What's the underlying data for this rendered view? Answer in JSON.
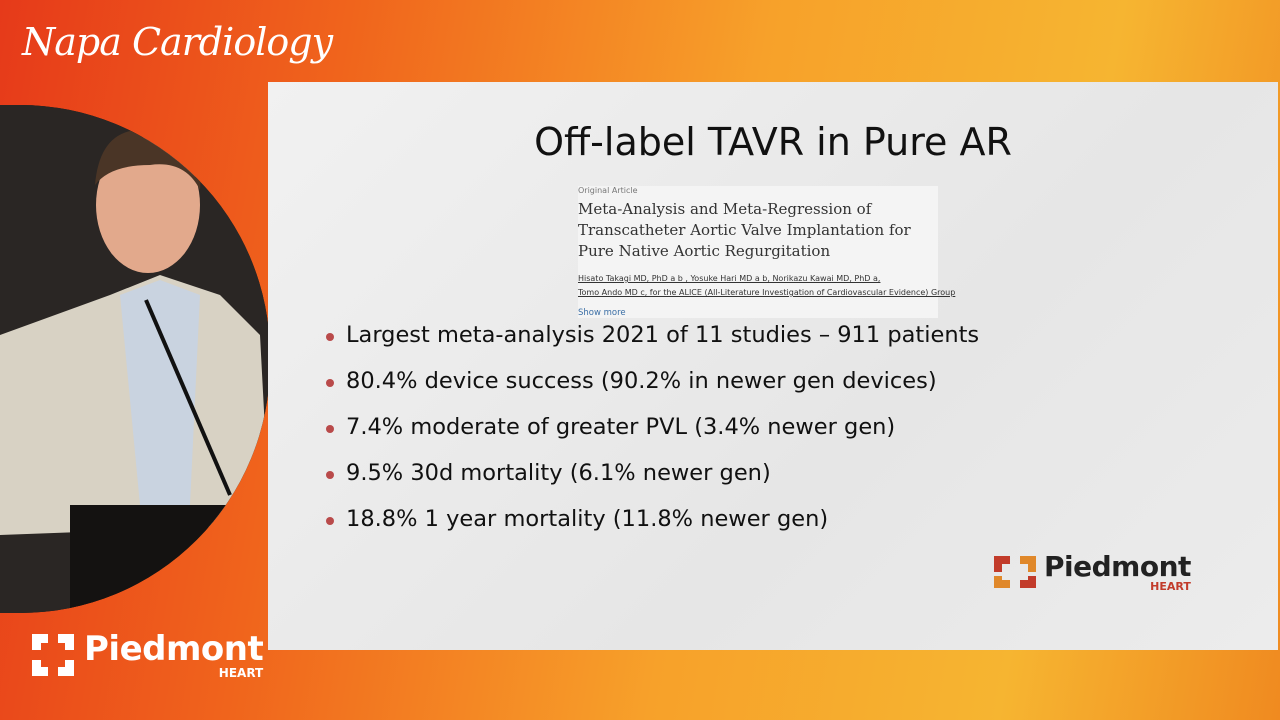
{
  "brand": {
    "show_name": "Napa Cardiology",
    "logo_name": "Piedmont",
    "logo_sub": "HEART"
  },
  "slide": {
    "title": "Off-label TAVR in Pure AR",
    "article": {
      "kind": "Original Article",
      "title_lines": [
        "Meta-Analysis and Meta-Regression of",
        "Transcatheter Aortic Valve Implantation for",
        "Pure Native Aortic Regurgitation"
      ],
      "author_lines": [
        "Hisato Takagi MD, PhD a b , Yosuke Hari MD a b, Norikazu Kawai MD, PhD a,",
        "Tomo Ando MD c, for the ALICE (All-Literature Investigation of Cardiovascular Evidence) Group"
      ],
      "show_more": "Show more"
    },
    "bullets": [
      "Largest meta-analysis 2021 of 11 studies – 911 patients",
      "80.4% device success (90.2% in newer gen devices)",
      "7.4% moderate of greater PVL (3.4% newer gen)",
      "9.5% 30d mortality (6.1% newer gen)",
      "18.8% 1 year mortality (11.8% newer gen)"
    ],
    "logo_name": "Piedmont",
    "logo_sub": "HEART"
  }
}
